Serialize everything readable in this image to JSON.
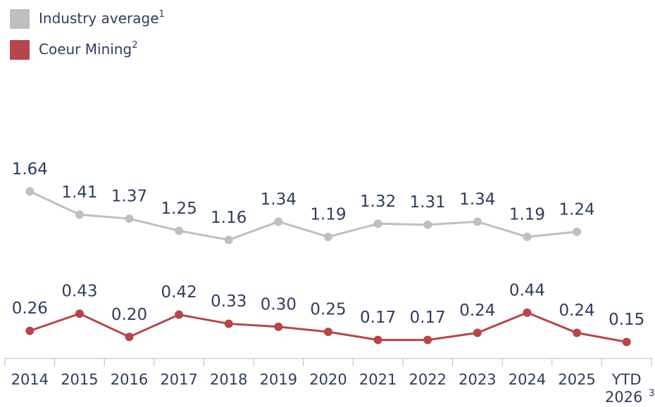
{
  "chart_data": {
    "type": "line",
    "categories": [
      "2014",
      "2015",
      "2016",
      "2017",
      "2018",
      "2019",
      "2020",
      "2021",
      "2022",
      "2023",
      "2024",
      "2025",
      "YTD 2026"
    ],
    "x_footnote": "3",
    "series": [
      {
        "name": "Industry average",
        "footnote": "1",
        "color": "#bfbfbf",
        "values": [
          1.64,
          1.41,
          1.37,
          1.25,
          1.16,
          1.34,
          1.19,
          1.32,
          1.31,
          1.34,
          1.19,
          1.24,
          null
        ],
        "value_labels": [
          "1.64",
          "1.41",
          "1.37",
          "1.25",
          "1.16",
          "1.34",
          "1.19",
          "1.32",
          "1.31",
          "1.34",
          "1.19",
          "1.24",
          null
        ]
      },
      {
        "name": "Coeur Mining",
        "footnote": "2",
        "color": "#b5464b",
        "values": [
          0.26,
          0.43,
          0.2,
          0.42,
          0.33,
          0.3,
          0.25,
          0.17,
          0.17,
          0.24,
          0.44,
          0.24,
          0.15
        ],
        "value_labels": [
          "0.26",
          "0.43",
          "0.20",
          "0.42",
          "0.33",
          "0.30",
          "0.25",
          "0.17",
          "0.17",
          "0.24",
          "0.44",
          "0.24",
          "0.15"
        ]
      }
    ],
    "ylim": [
      0,
      1.7
    ]
  }
}
